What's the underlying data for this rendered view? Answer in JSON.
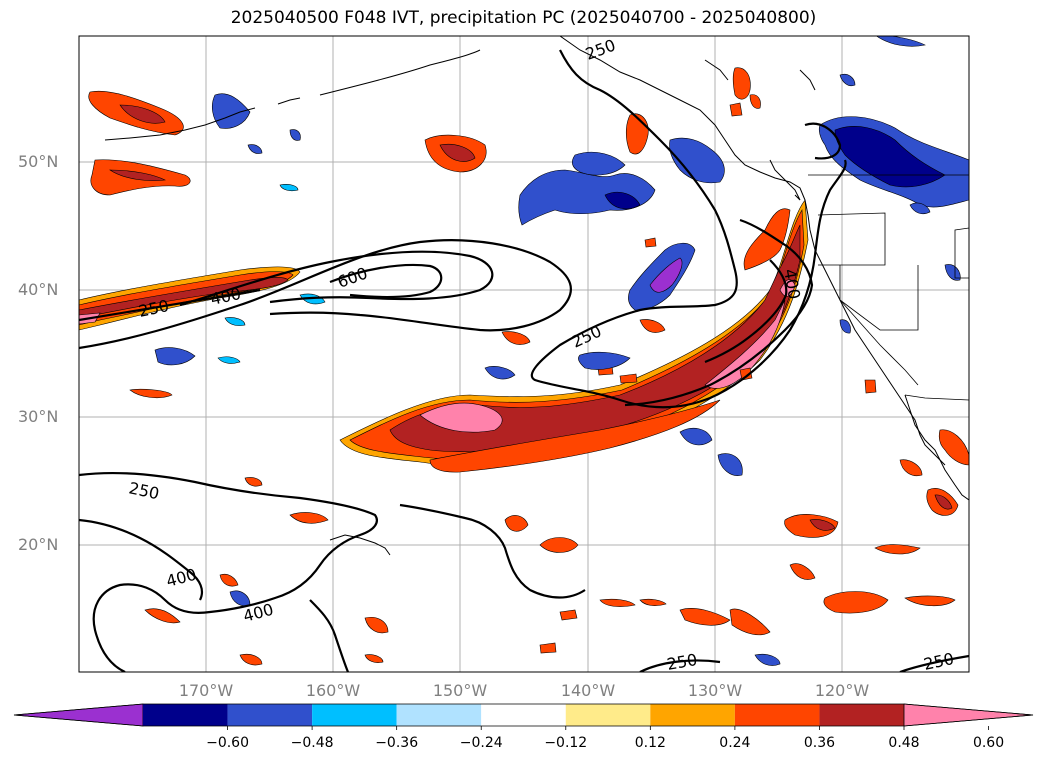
{
  "title": "2025040500 F048 IVT, precipitation PC (2025040700 - 2025040800)",
  "latitude_labels": [
    "50°N",
    "40°N",
    "30°N",
    "20°N"
  ],
  "longitude_labels": [
    "170°W",
    "160°W",
    "150°W",
    "140°W",
    "130°W",
    "120°W"
  ],
  "colorbar": {
    "ticks": [
      "−0.60",
      "−0.48",
      "−0.36",
      "−0.24",
      "−0.12",
      "0.12",
      "0.24",
      "0.36",
      "0.48",
      "0.60"
    ],
    "colors": [
      "#9b30d0",
      "#00008b",
      "#3050cc",
      "#00bfff",
      "#b0e2ff",
      "#ffffff",
      "#ffeb8a",
      "#ffa500",
      "#ff4500",
      "#b22222",
      "#ff82ab"
    ]
  },
  "ivt_contour_labels": [
    "250",
    "400",
    "600",
    "250",
    "400",
    "250",
    "400",
    "400",
    "250",
    "250",
    "250"
  ],
  "colors": {
    "positive": [
      "#ffeb8a",
      "#ffa500",
      "#ff4500",
      "#b22222",
      "#ff82ab"
    ],
    "negative": [
      "#b0e2ff",
      "#00bfff",
      "#3050cc",
      "#00008b",
      "#9b30d0"
    ]
  }
}
